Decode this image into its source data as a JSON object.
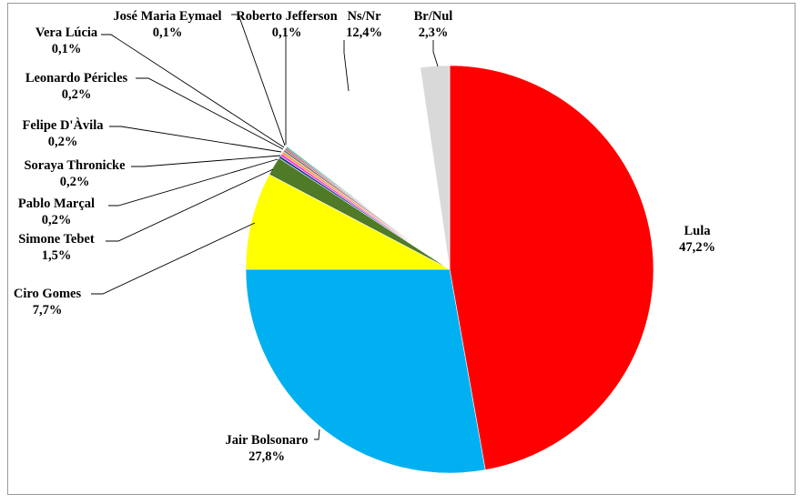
{
  "chart_data": {
    "type": "pie",
    "start_angle_deg": 0,
    "direction": "clockwise",
    "slices": [
      {
        "label": "Lula",
        "value": 47.2,
        "display": "47,2%",
        "color": "#ff0000"
      },
      {
        "label": "Jair Bolsonaro",
        "value": 27.8,
        "display": "27,8%",
        "color": "#00b0f0"
      },
      {
        "label": "Ciro Gomes",
        "value": 7.7,
        "display": "7,7%",
        "color": "#ffff00"
      },
      {
        "label": "Simone Tebet",
        "value": 1.5,
        "display": "1,5%",
        "color": "#4f7a28"
      },
      {
        "label": "Pablo Marçal",
        "value": 0.2,
        "display": "0,2%",
        "color": "#1f3a93"
      },
      {
        "label": "Soraya Thronicke",
        "value": 0.2,
        "display": "0,2%",
        "color": "#ff33cc"
      },
      {
        "label": "Felipe D'Àvila",
        "value": 0.2,
        "display": "0,2%",
        "color": "#ff9933"
      },
      {
        "label": "Leonardo Péricles",
        "value": 0.2,
        "display": "0,2%",
        "color": "#7f7f7f"
      },
      {
        "label": "Vera Lúcia",
        "value": 0.1,
        "display": "0,1%",
        "color": "#c00000"
      },
      {
        "label": "José Maria Eymael",
        "value": 0.1,
        "display": "0,1%",
        "color": "#7030a0"
      },
      {
        "label": "Roberto Jefferson",
        "value": 0.1,
        "display": "0,1%",
        "color": "#00b050"
      },
      {
        "label": "Ns/Nr",
        "value": 12.4,
        "display": "12,4%",
        "color": "#ffffff"
      },
      {
        "label": "Br/Nul",
        "value": 2.3,
        "display": "2,3%",
        "color": "#d9d9d9"
      }
    ]
  }
}
